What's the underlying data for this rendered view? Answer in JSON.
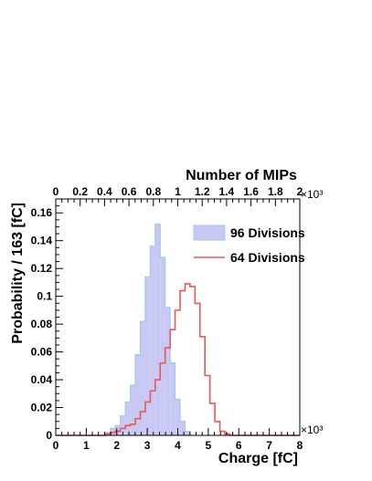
{
  "chart_data": {
    "type": "histogram",
    "xlabel": "Charge [fC]",
    "ylabel": "Probability / 163 [fC]",
    "top_axis_label": "Number of MIPs",
    "x_exponent_label": "×10³",
    "top_exponent_label": "×10³",
    "xlim": [
      0,
      8000
    ],
    "ylim": [
      0,
      0.17
    ],
    "top_axis_range": [
      0,
      2000
    ],
    "x_ticks": [
      0,
      1000,
      2000,
      3000,
      4000,
      5000,
      6000,
      7000,
      8000
    ],
    "x_tick_labels": [
      "0",
      "1",
      "2",
      "3",
      "4",
      "5",
      "6",
      "7",
      "8"
    ],
    "y_ticks": [
      0,
      0.02,
      0.04,
      0.06,
      0.08,
      0.1,
      0.12,
      0.14,
      0.16
    ],
    "y_tick_labels": [
      "0",
      "0.02",
      "0.04",
      "0.06",
      "0.08",
      "0.1",
      "0.12",
      "0.14",
      "0.16"
    ],
    "top_ticks": [
      0,
      200,
      400,
      600,
      800,
      1000,
      1200,
      1400,
      1600,
      1800,
      2000
    ],
    "top_tick_labels": [
      "0",
      "0.2",
      "0.4",
      "0.6",
      "0.8",
      "1",
      "1.2",
      "1.4",
      "1.6",
      "1.8",
      "2"
    ],
    "legend_position": "top-right",
    "bin_width": 163,
    "series": [
      {
        "name": "96 Divisions",
        "style": "filled",
        "fill_color": "#c8c8f5",
        "line_color": "#9ec8ee",
        "bin_edges": [
          1630,
          1793,
          1956,
          2119,
          2282,
          2445,
          2608,
          2771,
          2934,
          3097,
          3260,
          3423,
          3586,
          3749,
          3912,
          4075,
          4238,
          4401
        ],
        "values": [
          0.002,
          0.005,
          0.007,
          0.014,
          0.024,
          0.036,
          0.058,
          0.082,
          0.114,
          0.136,
          0.152,
          0.128,
          0.092,
          0.052,
          0.026,
          0.01,
          0.003
        ]
      },
      {
        "name": "64 Divisions",
        "style": "line",
        "line_color": "#f05555",
        "bin_edges": [
          1630,
          1793,
          1956,
          2119,
          2282,
          2445,
          2608,
          2771,
          2934,
          3097,
          3260,
          3423,
          3586,
          3749,
          3912,
          4075,
          4238,
          4401,
          4564,
          4727,
          4890,
          5053,
          5216,
          5379,
          5542,
          5705
        ],
        "values": [
          0.001,
          0.002,
          0.003,
          0.005,
          0.007,
          0.008,
          0.012,
          0.017,
          0.024,
          0.032,
          0.04,
          0.052,
          0.063,
          0.076,
          0.09,
          0.104,
          0.109,
          0.107,
          0.095,
          0.071,
          0.043,
          0.023,
          0.01,
          0.003,
          0.001
        ]
      }
    ]
  }
}
